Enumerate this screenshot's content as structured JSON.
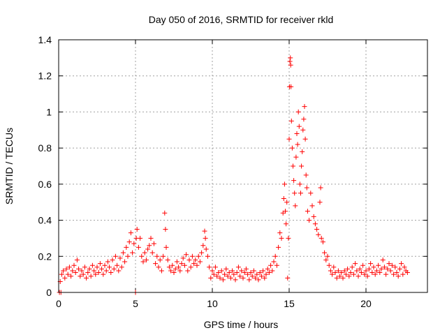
{
  "chart_data": {
    "type": "scatter",
    "title": "Day 050 of 2016, SRMTID for receiver rkld",
    "xlabel": "GPS time / hours",
    "ylabel": "SRMTID / TECUs",
    "xlim": [
      0,
      24
    ],
    "ylim": [
      0,
      1.4
    ],
    "xticks": [
      0,
      5,
      10,
      15,
      20
    ],
    "xtick_labels": [
      "0",
      "5",
      "10",
      "15",
      "20"
    ],
    "yticks": [
      0,
      0.2,
      0.4,
      0.6,
      0.8,
      1.0,
      1.2,
      1.4
    ],
    "ytick_labels": [
      "0",
      "0.2",
      "0.4",
      "0.6",
      "0.8",
      "1",
      "1.2",
      "1.4"
    ],
    "grid": true,
    "marker": "plus",
    "marker_color": "#ff0000",
    "series": [
      {
        "name": "SRMTID",
        "points": [
          [
            0.05,
            0.0
          ],
          [
            0.1,
            0.06
          ],
          [
            0.15,
            0.0
          ],
          [
            0.2,
            0.1
          ],
          [
            0.3,
            0.12
          ],
          [
            0.4,
            0.08
          ],
          [
            0.5,
            0.13
          ],
          [
            0.6,
            0.1
          ],
          [
            0.7,
            0.14
          ],
          [
            0.8,
            0.09
          ],
          [
            0.9,
            0.12
          ],
          [
            1.0,
            0.15
          ],
          [
            1.1,
            0.11
          ],
          [
            1.2,
            0.18
          ],
          [
            1.3,
            0.13
          ],
          [
            1.4,
            0.09
          ],
          [
            1.5,
            0.12
          ],
          [
            1.6,
            0.1
          ],
          [
            1.7,
            0.14
          ],
          [
            1.8,
            0.08
          ],
          [
            1.9,
            0.11
          ],
          [
            2.0,
            0.13
          ],
          [
            2.1,
            0.09
          ],
          [
            2.2,
            0.15
          ],
          [
            2.3,
            0.12
          ],
          [
            2.4,
            0.1
          ],
          [
            2.5,
            0.14
          ],
          [
            2.6,
            0.11
          ],
          [
            2.7,
            0.16
          ],
          [
            2.8,
            0.13
          ],
          [
            2.9,
            0.1
          ],
          [
            3.0,
            0.15
          ],
          [
            3.1,
            0.12
          ],
          [
            3.2,
            0.17
          ],
          [
            3.3,
            0.14
          ],
          [
            3.4,
            0.11
          ],
          [
            3.5,
            0.18
          ],
          [
            3.6,
            0.13
          ],
          [
            3.7,
            0.2
          ],
          [
            3.8,
            0.15
          ],
          [
            3.9,
            0.12
          ],
          [
            4.0,
            0.19
          ],
          [
            4.1,
            0.14
          ],
          [
            4.2,
            0.22
          ],
          [
            4.3,
            0.17
          ],
          [
            4.4,
            0.25
          ],
          [
            4.5,
            0.2
          ],
          [
            4.6,
            0.28
          ],
          [
            4.7,
            0.33
          ],
          [
            4.8,
            0.22
          ],
          [
            4.9,
            0.27
          ],
          [
            5.0,
            0.0
          ],
          [
            5.05,
            0.3
          ],
          [
            5.1,
            0.35
          ],
          [
            5.2,
            0.25
          ],
          [
            5.3,
            0.3
          ],
          [
            5.4,
            0.2
          ],
          [
            5.5,
            0.17
          ],
          [
            5.6,
            0.22
          ],
          [
            5.7,
            0.18
          ],
          [
            5.8,
            0.24
          ],
          [
            5.9,
            0.26
          ],
          [
            6.0,
            0.3
          ],
          [
            6.1,
            0.22
          ],
          [
            6.2,
            0.27
          ],
          [
            6.3,
            0.16
          ],
          [
            6.4,
            0.2
          ],
          [
            6.5,
            0.14
          ],
          [
            6.6,
            0.18
          ],
          [
            6.7,
            0.12
          ],
          [
            6.8,
            0.2
          ],
          [
            6.9,
            0.44
          ],
          [
            6.95,
            0.35
          ],
          [
            7.0,
            0.25
          ],
          [
            7.1,
            0.18
          ],
          [
            7.2,
            0.14
          ],
          [
            7.3,
            0.12
          ],
          [
            7.4,
            0.15
          ],
          [
            7.5,
            0.11
          ],
          [
            7.6,
            0.13
          ],
          [
            7.7,
            0.17
          ],
          [
            7.8,
            0.14
          ],
          [
            7.9,
            0.12
          ],
          [
            8.0,
            0.16
          ],
          [
            8.1,
            0.19
          ],
          [
            8.2,
            0.15
          ],
          [
            8.3,
            0.21
          ],
          [
            8.4,
            0.12
          ],
          [
            8.5,
            0.18
          ],
          [
            8.6,
            0.14
          ],
          [
            8.7,
            0.2
          ],
          [
            8.8,
            0.16
          ],
          [
            8.9,
            0.18
          ],
          [
            9.0,
            0.15
          ],
          [
            9.1,
            0.2
          ],
          [
            9.2,
            0.17
          ],
          [
            9.3,
            0.22
          ],
          [
            9.4,
            0.26
          ],
          [
            9.5,
            0.34
          ],
          [
            9.55,
            0.3
          ],
          [
            9.6,
            0.24
          ],
          [
            9.7,
            0.2
          ],
          [
            9.8,
            0.14
          ],
          [
            9.9,
            0.08
          ],
          [
            10.0,
            0.12
          ],
          [
            10.1,
            0.1
          ],
          [
            10.2,
            0.14
          ],
          [
            10.3,
            0.09
          ],
          [
            10.4,
            0.11
          ],
          [
            10.5,
            0.08
          ],
          [
            10.6,
            0.12
          ],
          [
            10.7,
            0.07
          ],
          [
            10.8,
            0.1
          ],
          [
            10.9,
            0.13
          ],
          [
            11.0,
            0.09
          ],
          [
            11.1,
            0.11
          ],
          [
            11.2,
            0.08
          ],
          [
            11.3,
            0.12
          ],
          [
            11.4,
            0.1
          ],
          [
            11.5,
            0.07
          ],
          [
            11.6,
            0.11
          ],
          [
            11.7,
            0.14
          ],
          [
            11.8,
            0.09
          ],
          [
            11.9,
            0.12
          ],
          [
            12.0,
            0.08
          ],
          [
            12.1,
            0.11
          ],
          [
            12.2,
            0.13
          ],
          [
            12.3,
            0.1
          ],
          [
            12.4,
            0.07
          ],
          [
            12.5,
            0.11
          ],
          [
            12.6,
            0.09
          ],
          [
            12.7,
            0.12
          ],
          [
            12.8,
            0.08
          ],
          [
            12.9,
            0.1
          ],
          [
            13.0,
            0.07
          ],
          [
            13.1,
            0.11
          ],
          [
            13.2,
            0.09
          ],
          [
            13.3,
            0.12
          ],
          [
            13.4,
            0.08
          ],
          [
            13.5,
            0.1
          ],
          [
            13.6,
            0.13
          ],
          [
            13.7,
            0.11
          ],
          [
            13.8,
            0.15
          ],
          [
            13.9,
            0.12
          ],
          [
            14.0,
            0.17
          ],
          [
            14.1,
            0.2
          ],
          [
            14.2,
            0.15
          ],
          [
            14.3,
            0.25
          ],
          [
            14.4,
            0.33
          ],
          [
            14.5,
            0.3
          ],
          [
            14.6,
            0.44
          ],
          [
            14.65,
            0.52
          ],
          [
            14.7,
            0.6
          ],
          [
            14.75,
            0.45
          ],
          [
            14.8,
            0.38
          ],
          [
            14.85,
            0.5
          ],
          [
            14.9,
            0.08
          ],
          [
            14.95,
            0.3
          ],
          [
            15.0,
            0.85
          ],
          [
            15.02,
            1.14
          ],
          [
            15.05,
            1.28
          ],
          [
            15.08,
            1.3
          ],
          [
            15.1,
            1.26
          ],
          [
            15.12,
            1.14
          ],
          [
            15.15,
            0.95
          ],
          [
            15.2,
            0.8
          ],
          [
            15.25,
            0.7
          ],
          [
            15.3,
            0.62
          ],
          [
            15.35,
            0.55
          ],
          [
            15.4,
            0.48
          ],
          [
            15.45,
            0.75
          ],
          [
            15.5,
            0.88
          ],
          [
            15.55,
            0.82
          ],
          [
            15.6,
            1.0
          ],
          [
            15.65,
            0.92
          ],
          [
            15.7,
            0.6
          ],
          [
            15.75,
            0.55
          ],
          [
            15.8,
            0.7
          ],
          [
            15.85,
            0.78
          ],
          [
            15.9,
            0.9
          ],
          [
            15.95,
            0.96
          ],
          [
            16.0,
            1.03
          ],
          [
            16.05,
            0.85
          ],
          [
            16.1,
            0.65
          ],
          [
            16.15,
            0.58
          ],
          [
            16.2,
            0.45
          ],
          [
            16.3,
            0.4
          ],
          [
            16.4,
            0.55
          ],
          [
            16.5,
            0.48
          ],
          [
            16.6,
            0.42
          ],
          [
            16.7,
            0.38
          ],
          [
            16.8,
            0.35
          ],
          [
            16.9,
            0.32
          ],
          [
            17.0,
            0.5
          ],
          [
            17.05,
            0.58
          ],
          [
            17.1,
            0.3
          ],
          [
            17.2,
            0.28
          ],
          [
            17.3,
            0.22
          ],
          [
            17.4,
            0.18
          ],
          [
            17.5,
            0.2
          ],
          [
            17.6,
            0.15
          ],
          [
            17.7,
            0.12
          ],
          [
            17.8,
            0.1
          ],
          [
            17.9,
            0.14
          ],
          [
            18.0,
            0.11
          ],
          [
            18.1,
            0.08
          ],
          [
            18.2,
            0.12
          ],
          [
            18.3,
            0.09
          ],
          [
            18.4,
            0.11
          ],
          [
            18.5,
            0.08
          ],
          [
            18.6,
            0.12
          ],
          [
            18.7,
            0.1
          ],
          [
            18.8,
            0.13
          ],
          [
            18.9,
            0.09
          ],
          [
            19.0,
            0.11
          ],
          [
            19.1,
            0.14
          ],
          [
            19.2,
            0.1
          ],
          [
            19.3,
            0.16
          ],
          [
            19.4,
            0.12
          ],
          [
            19.5,
            0.09
          ],
          [
            19.6,
            0.13
          ],
          [
            19.7,
            0.11
          ],
          [
            19.8,
            0.15
          ],
          [
            19.9,
            0.1
          ],
          [
            20.0,
            0.12
          ],
          [
            20.1,
            0.09
          ],
          [
            20.2,
            0.13
          ],
          [
            20.3,
            0.16
          ],
          [
            20.4,
            0.11
          ],
          [
            20.5,
            0.14
          ],
          [
            20.6,
            0.1
          ],
          [
            20.7,
            0.12
          ],
          [
            20.8,
            0.15
          ],
          [
            20.9,
            0.11
          ],
          [
            21.0,
            0.13
          ],
          [
            21.1,
            0.18
          ],
          [
            21.2,
            0.14
          ],
          [
            21.3,
            0.1
          ],
          [
            21.4,
            0.13
          ],
          [
            21.5,
            0.16
          ],
          [
            21.6,
            0.12
          ],
          [
            21.7,
            0.15
          ],
          [
            21.8,
            0.1
          ],
          [
            21.9,
            0.14
          ],
          [
            22.0,
            0.11
          ],
          [
            22.1,
            0.09
          ],
          [
            22.2,
            0.13
          ],
          [
            22.3,
            0.16
          ],
          [
            22.4,
            0.1
          ],
          [
            22.5,
            0.14
          ],
          [
            22.6,
            0.12
          ],
          [
            22.7,
            0.11
          ]
        ]
      }
    ]
  }
}
